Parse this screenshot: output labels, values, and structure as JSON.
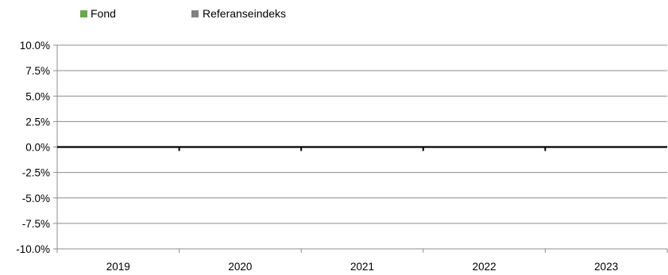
{
  "chart_data": {
    "type": "bar",
    "categories": [
      "2019",
      "2020",
      "2021",
      "2022",
      "2023"
    ],
    "series": [
      {
        "name": "Fond",
        "values": [
          null,
          null,
          null,
          null,
          null
        ],
        "color": "#6aa84f"
      },
      {
        "name": "Referanseindeks",
        "values": [
          null,
          null,
          null,
          null,
          null
        ],
        "color": "#808080"
      }
    ],
    "yticks": [
      "10.0%",
      "7.5%",
      "5.0%",
      "2.5%",
      "0.0%",
      "-2.5%",
      "-5.0%",
      "-7.5%",
      "-10.0%"
    ],
    "ylim": [
      -10,
      10
    ],
    "grid": true,
    "legend": "top-left"
  }
}
